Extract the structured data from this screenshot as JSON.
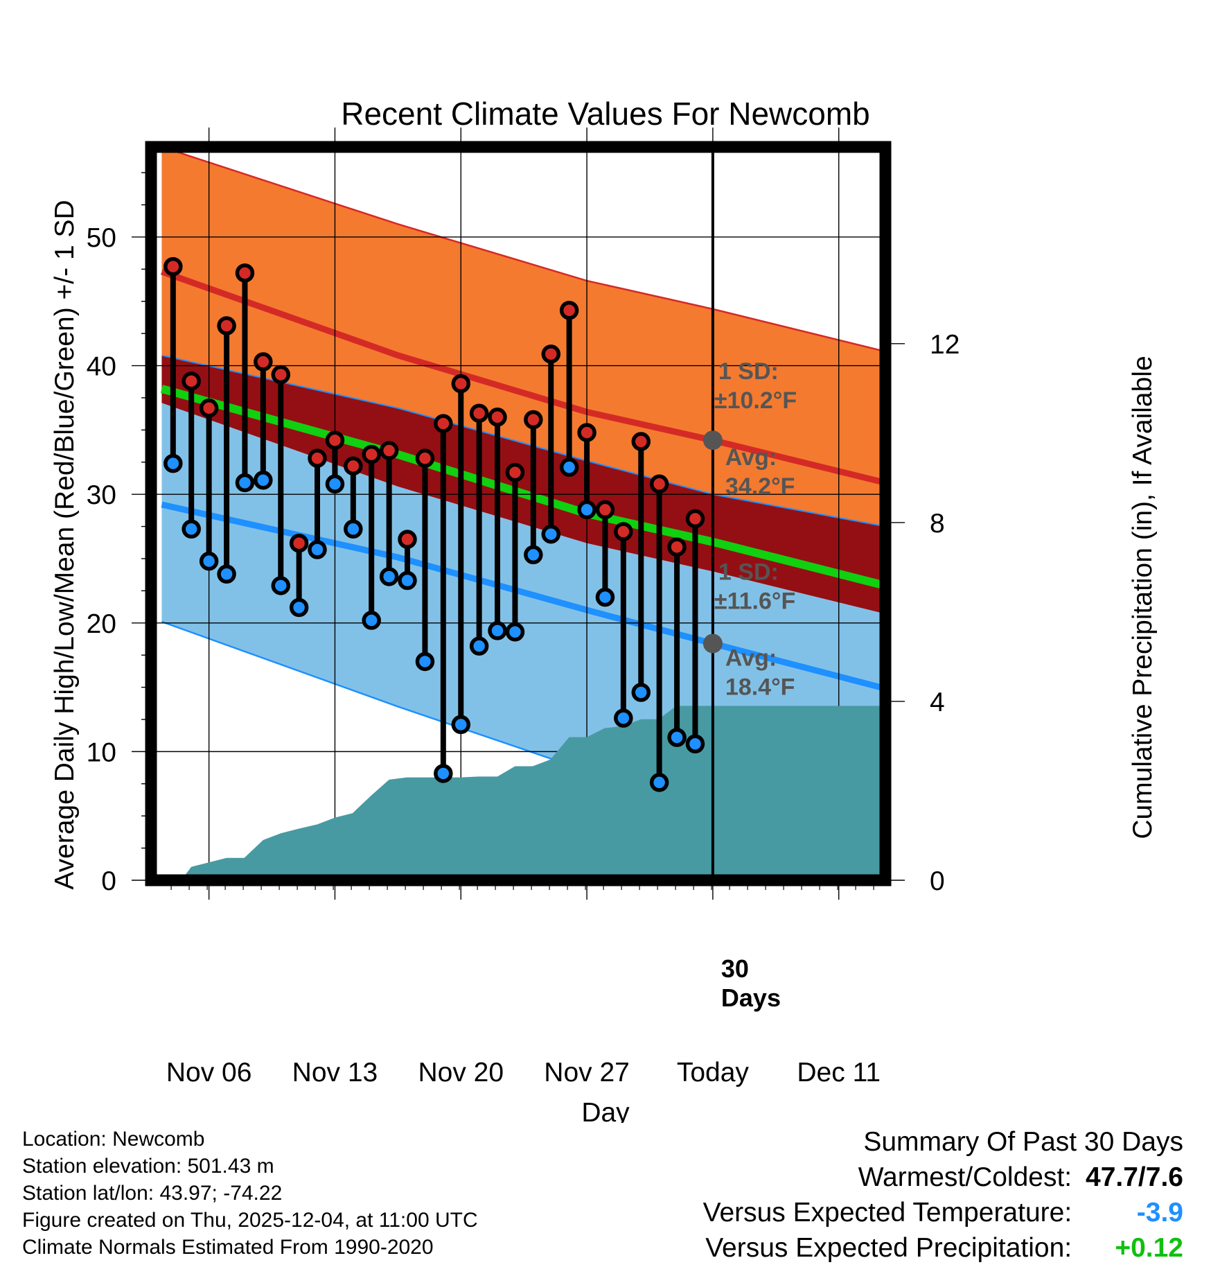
{
  "chart_data": {
    "type": "line",
    "title": "Recent Climate Values For Newcomb",
    "xlabel": "Day",
    "ylabel": "Average Daily High/Low/Mean (Red/Blue/Green) +/- 1 SD",
    "y2label": "Cumulative Precipitation (in), If Available",
    "xlim": [
      -4.6,
      53.7
    ],
    "ylim": [
      0,
      57
    ],
    "y2lim": [
      0,
      16.4
    ],
    "x_ticks": [
      {
        "x": 0,
        "label": "Nov 06"
      },
      {
        "x": 10,
        "label": "Nov 13"
      },
      {
        "x": 20,
        "label": "Nov 20"
      },
      {
        "x": 30,
        "label": "Nov 27"
      },
      {
        "x": 40,
        "label": "Today"
      },
      {
        "x": 50,
        "label": "Dec 11"
      }
    ],
    "y_ticks": [
      0,
      10,
      20,
      30,
      40,
      50
    ],
    "y2_ticks": [
      0,
      4,
      8,
      12
    ],
    "today_x": 40,
    "today_label": "30 Days",
    "normals": {
      "x": [
        -3.75,
        15,
        30,
        40,
        53.7
      ],
      "high_avg": [
        47.3,
        40.8,
        36.4,
        34.2,
        30.9
      ],
      "high_upper": [
        57.3,
        51.0,
        46.6,
        44.4,
        41.1
      ],
      "high_lower": [
        37.1,
        30.6,
        26.2,
        24.0,
        20.7
      ],
      "low_avg": [
        29.2,
        25.1,
        21.0,
        18.4,
        14.9
      ],
      "low_upper": [
        40.8,
        36.7,
        32.6,
        30.0,
        27.5
      ],
      "low_lower": [
        20.1,
        13.5,
        8.5,
        6.8,
        3.3
      ],
      "mean_avg": [
        38.2,
        33.1,
        28.5,
        26.3,
        22.9
      ]
    },
    "annotations": {
      "high_sd_label": "1 SD:",
      "high_sd_value": "±10.2°F",
      "high_avg_label": "Avg:",
      "high_avg_value": "34.2°F",
      "low_sd_label": "1 SD:",
      "low_sd_value": "±11.6°F",
      "low_avg_label": "Avg:",
      "low_avg_value": "18.4°F"
    },
    "daily": [
      {
        "x": -2.85,
        "high": 47.7,
        "low": 32.4,
        "low_above_normal": true
      },
      {
        "x": -1.4,
        "high": 38.8,
        "low": 27.3,
        "low_above_normal": false
      },
      {
        "x": 0,
        "high": 36.7,
        "low": 24.8,
        "low_above_normal": false
      },
      {
        "x": 1.4,
        "high": 43.1,
        "low": 23.8,
        "low_above_normal": false
      },
      {
        "x": 2.85,
        "high": 47.2,
        "low": 30.9,
        "low_above_normal": true
      },
      {
        "x": 4.3,
        "high": 40.3,
        "low": 31.1,
        "low_above_normal": true
      },
      {
        "x": 5.7,
        "high": 39.3,
        "low": 22.9,
        "low_above_normal": false
      },
      {
        "x": 7.15,
        "high": 26.2,
        "low": 21.2,
        "low_above_normal": false
      },
      {
        "x": 8.6,
        "high": 32.8,
        "low": 25.7,
        "low_above_normal": false
      },
      {
        "x": 10,
        "high": 34.2,
        "low": 30.8,
        "low_above_normal": true
      },
      {
        "x": 11.45,
        "high": 32.2,
        "low": 27.3,
        "low_above_normal": true
      },
      {
        "x": 12.9,
        "high": 33.1,
        "low": 20.2,
        "low_above_normal": false
      },
      {
        "x": 14.3,
        "high": 33.4,
        "low": 23.6,
        "low_above_normal": false
      },
      {
        "x": 15.75,
        "high": 26.5,
        "low": 23.3,
        "low_above_normal": false
      },
      {
        "x": 17.15,
        "high": 32.8,
        "low": 17.0,
        "low_above_normal": false
      },
      {
        "x": 18.6,
        "high": 35.5,
        "low": 8.3,
        "low_above_normal": false
      },
      {
        "x": 20,
        "high": 38.6,
        "low": 12.1,
        "low_above_normal": false
      },
      {
        "x": 21.45,
        "high": 36.3,
        "low": 18.2,
        "low_above_normal": false
      },
      {
        "x": 22.9,
        "high": 36.0,
        "low": 19.4,
        "low_above_normal": false
      },
      {
        "x": 24.3,
        "high": 31.7,
        "low": 19.3,
        "low_above_normal": false
      },
      {
        "x": 25.75,
        "high": 35.8,
        "low": 25.3,
        "low_above_normal": false
      },
      {
        "x": 27.15,
        "high": 40.9,
        "low": 26.9,
        "low_above_normal": true
      },
      {
        "x": 28.6,
        "high": 44.3,
        "low": 32.1,
        "low_above_normal": true
      },
      {
        "x": 30,
        "high": 34.8,
        "low": 28.8,
        "low_above_normal": true
      },
      {
        "x": 31.45,
        "high": 28.8,
        "low": 22.0,
        "low_above_normal": false
      },
      {
        "x": 32.9,
        "high": 27.1,
        "low": 12.6,
        "low_above_normal": false
      },
      {
        "x": 34.3,
        "high": 34.1,
        "low": 14.6,
        "low_above_normal": false
      },
      {
        "x": 35.75,
        "high": 30.8,
        "low": 7.6,
        "low_above_normal": false
      },
      {
        "x": 37.15,
        "high": 25.9,
        "low": 11.1,
        "low_above_normal": false
      },
      {
        "x": 38.6,
        "high": 28.1,
        "low": 10.6,
        "low_above_normal": false
      }
    ],
    "precipitation": {
      "x": [
        -3.75,
        -2.2,
        -1.4,
        0,
        1.4,
        2.8,
        4.3,
        5.7,
        7.1,
        8.6,
        10,
        11.4,
        12.9,
        14.3,
        15.7,
        17.1,
        18.6,
        20,
        21.4,
        22.9,
        24.3,
        25.7,
        27.1,
        28.6,
        30,
        31.4,
        32.9,
        34.3,
        35.7,
        37.1,
        38.6,
        40,
        53.7
      ],
      "cumulative_in": [
        0,
        0,
        0.3,
        0.4,
        0.5,
        0.5,
        0.9,
        1.05,
        1.15,
        1.25,
        1.4,
        1.5,
        1.9,
        2.25,
        2.3,
        2.3,
        2.3,
        2.3,
        2.32,
        2.32,
        2.55,
        2.55,
        2.7,
        3.2,
        3.2,
        3.4,
        3.45,
        3.6,
        3.6,
        3.9,
        3.9,
        3.9,
        3.9
      ]
    },
    "colors": {
      "high_band": "#f47a30",
      "high_line": "#d42a26",
      "mean_band": "#940f13",
      "mean_line": "#10d010",
      "low_band": "#82c1e7",
      "low_line": "#1e90ff",
      "precip": "#479aa2",
      "high_marker": "#d42a26",
      "low_marker": "#1e90ff",
      "annotation": "#555555",
      "warm_delta": "#1e90ff",
      "precip_delta": "#10c010"
    }
  },
  "footer": {
    "location": "Location: Newcomb",
    "elevation": "Station elevation: 501.43 m",
    "latlon": "Station lat/lon: 43.97; -74.22",
    "created": "Figure created on Thu, 2025-12-04, at 11:00 UTC",
    "normals": "Climate Normals Estimated From 1990-2020"
  },
  "summary": {
    "title": "Summary Of Past 30 Days",
    "warmest_coldest_label": "Warmest/Coldest:",
    "warmest_coldest_value": "47.7/7.6",
    "temp_label": "Versus Expected Temperature:",
    "temp_value": "-3.9",
    "precip_label": "Versus Expected Precipitation:",
    "precip_value": "+0.12"
  }
}
